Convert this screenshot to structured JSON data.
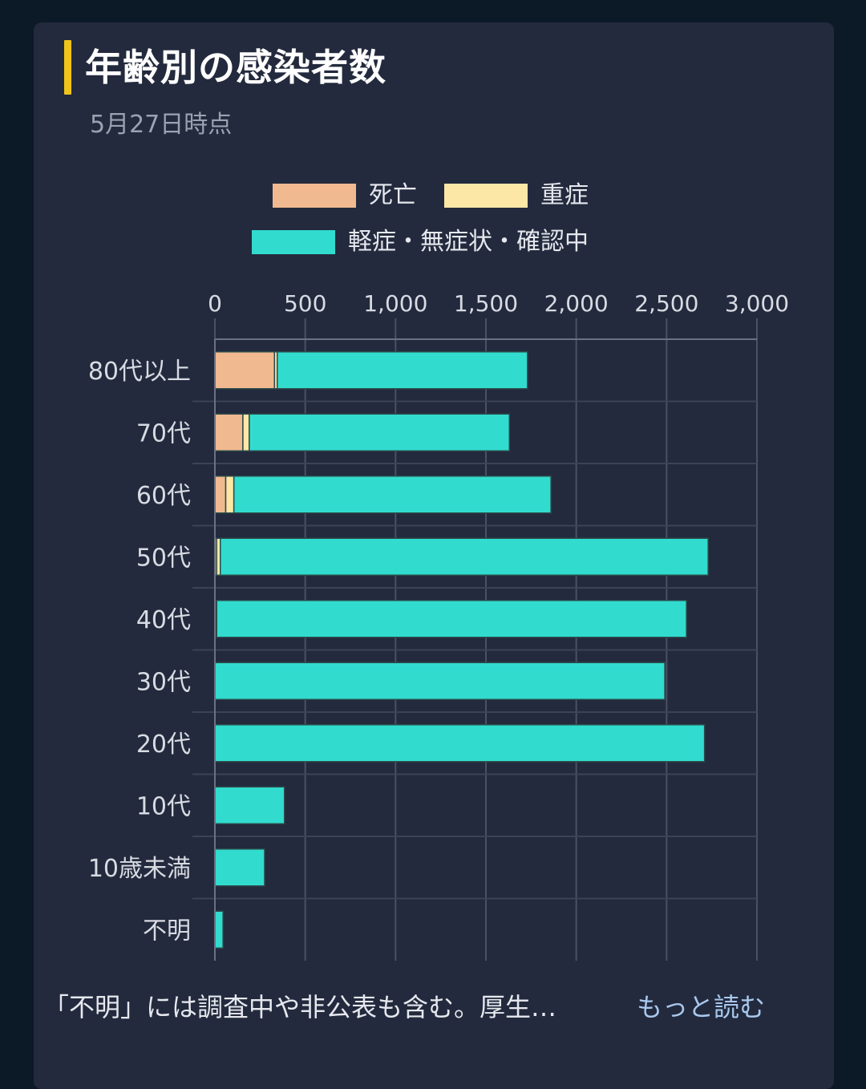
{
  "title": "年齢別の感染者数",
  "subtitle": "5月27日時点",
  "footer": {
    "note": "「不明」には調査中や非公表も含む。厚生…",
    "more_link": "もっと読む"
  },
  "chart_data": {
    "type": "bar",
    "orientation": "horizontal",
    "stacked": true,
    "categories": [
      "80代以上",
      "70代",
      "60代",
      "50代",
      "40代",
      "30代",
      "20代",
      "10代",
      "10歳未満",
      "不明"
    ],
    "series": [
      {
        "name": "死亡",
        "color": "#f0b990",
        "values": [
          330,
          155,
          60,
          10,
          5,
          0,
          0,
          0,
          0,
          0
        ]
      },
      {
        "name": "重症",
        "color": "#fde7a7",
        "values": [
          15,
          35,
          45,
          20,
          5,
          0,
          0,
          0,
          0,
          0
        ]
      },
      {
        "name": "軽症・無症状・確認中",
        "color": "#31dccf",
        "values": [
          1385,
          1440,
          1755,
          2700,
          2600,
          2490,
          2710,
          385,
          275,
          45
        ]
      }
    ],
    "xlim": [
      0,
      3000
    ],
    "x_ticks": [
      0,
      500,
      1000,
      1500,
      2000,
      2500,
      3000
    ],
    "x_tick_labels": [
      "0",
      "500",
      "1,000",
      "1,500",
      "2,000",
      "2,500",
      "3,000"
    ],
    "axis_position": "top",
    "grid": true,
    "legend_position": "top-center"
  }
}
